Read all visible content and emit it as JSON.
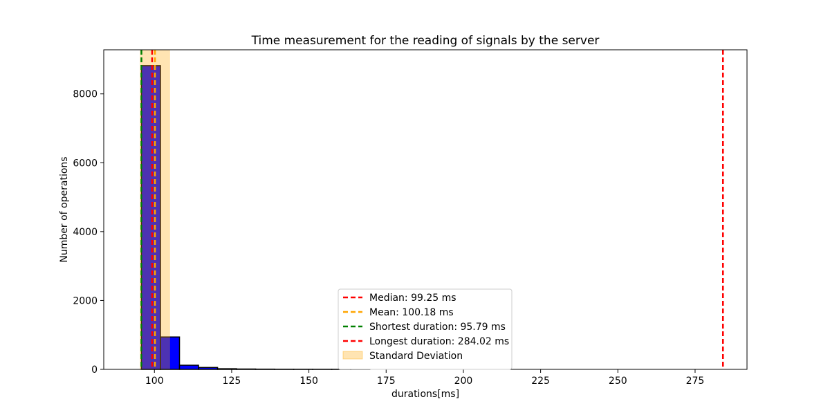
{
  "chart_data": {
    "type": "bar",
    "title": "Time measurement for the reading of signals by the server",
    "xlabel": "durations[ms]",
    "ylabel": "Number of operations",
    "xlim": [
      83.6,
      291.8
    ],
    "ylim": [
      0,
      9280
    ],
    "xticks": [
      100,
      125,
      150,
      175,
      200,
      225,
      250,
      275
    ],
    "yticks": [
      0,
      2000,
      4000,
      6000,
      8000
    ],
    "bar_color": "#0000ff",
    "bar_edge_color": "#000000",
    "bins": [
      {
        "x0": 95.79,
        "x1": 101.96,
        "count": 8820
      },
      {
        "x0": 101.96,
        "x1": 108.12,
        "count": 940
      },
      {
        "x0": 108.12,
        "x1": 114.28,
        "count": 120
      },
      {
        "x0": 114.28,
        "x1": 120.44,
        "count": 55
      },
      {
        "x0": 120.44,
        "x1": 126.6,
        "count": 18
      },
      {
        "x0": 126.6,
        "x1": 132.76,
        "count": 10
      },
      {
        "x0": 132.76,
        "x1": 138.92,
        "count": 6
      },
      {
        "x0": 138.92,
        "x1": 145.08,
        "count": 3
      },
      {
        "x0": 145.08,
        "x1": 151.24,
        "count": 2
      },
      {
        "x0": 151.24,
        "x1": 157.4,
        "count": 1
      },
      {
        "x0": 157.4,
        "x1": 163.56,
        "count": 1
      },
      {
        "x0": 163.56,
        "x1": 169.72,
        "count": 1
      }
    ],
    "std_band": {
      "x0": 95.3,
      "x1": 105.06,
      "color": "#ffa500"
    },
    "vlines": [
      {
        "key": "median",
        "x": 99.25,
        "color": "#ff0000"
      },
      {
        "key": "mean",
        "x": 100.18,
        "color": "#ffa500"
      },
      {
        "key": "shortest",
        "x": 95.79,
        "color": "#008000"
      },
      {
        "key": "longest",
        "x": 284.02,
        "color": "#ff0000"
      }
    ],
    "legend": {
      "location": "lower-center",
      "entries": [
        {
          "label": "Median: 99.25 ms",
          "style": "dashed-line",
          "color": "#ff0000"
        },
        {
          "label": "Mean: 100.18 ms",
          "style": "dashed-line",
          "color": "#ffa500"
        },
        {
          "label": "Shortest duration: 95.79 ms",
          "style": "dashed-line",
          "color": "#008000"
        },
        {
          "label": "Longest duration: 284.02 ms",
          "style": "dashed-line",
          "color": "#ff0000"
        },
        {
          "label": "Standard Deviation",
          "style": "patch",
          "color": "#ffa500"
        }
      ]
    }
  }
}
